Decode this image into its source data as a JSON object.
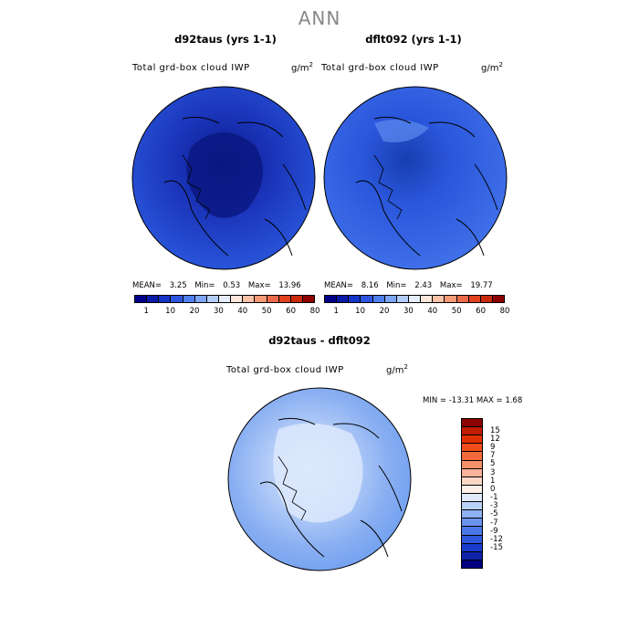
{
  "figure": {
    "title": "ANN"
  },
  "panels": [
    {
      "title": "d92taus (yrs 1-1)",
      "variable": "Total grd-box cloud IWP",
      "units": "g/m",
      "units_sup": "2",
      "mean_label": "MEAN=",
      "mean": "3.25",
      "min_label": "Min=",
      "min": "0.53",
      "max_label": "Max=",
      "max": "13.96"
    },
    {
      "title": "dflt092 (yrs 1-1)",
      "variable": "Total grd-box cloud IWP",
      "units": "g/m",
      "units_sup": "2",
      "mean_label": "MEAN=",
      "mean": "8.16",
      "min_label": "Min=",
      "min": "2.43",
      "max_label": "Max=",
      "max": "19.77"
    }
  ],
  "diff_panel": {
    "title": "d92taus - dflt092",
    "variable": "Total grd-box cloud IWP",
    "units": "g/m",
    "units_sup": "2",
    "stats": "MIN = -13.31 MAX =   1.68"
  },
  "horizontal_colorbar": {
    "colors": [
      "#00008b",
      "#0a1aa8",
      "#1434c8",
      "#2e55e0",
      "#4f7ef0",
      "#7ea6f7",
      "#b3cdfb",
      "#e6eefc",
      "#fde7dc",
      "#fbc2a8",
      "#f69a78",
      "#ee6b4a",
      "#e3421f",
      "#c92a0c",
      "#8c0000"
    ],
    "tick_labels": [
      "1",
      "10",
      "20",
      "30",
      "40",
      "50",
      "60",
      "80"
    ]
  },
  "vertical_colorbar": {
    "colors": [
      "#8b0000",
      "#c01c00",
      "#e03000",
      "#f04d1a",
      "#f26a3c",
      "#f5906a",
      "#f9b39a",
      "#fcd7c6",
      "#fdf0e6",
      "#dfe9fb",
      "#b9d1f8",
      "#8fb3f2",
      "#6a94ec",
      "#4a77e6",
      "#2d58dc",
      "#1b3bcc",
      "#0f22a8",
      "#000080"
    ],
    "tick_labels": [
      "15",
      "12",
      "9",
      "7",
      "5",
      "3",
      "1",
      "0",
      "-1",
      "-3",
      "-5",
      "-7",
      "-9",
      "-12",
      "-15"
    ]
  },
  "colors": {
    "ocean_left": "#1f3fcf",
    "arctic_left": "#0b1a8e",
    "ocean_right": "#3162e4",
    "arctic_right": "#123aa8",
    "diff_base": "#6f9ff0",
    "diff_center": "#cfe0fb"
  }
}
